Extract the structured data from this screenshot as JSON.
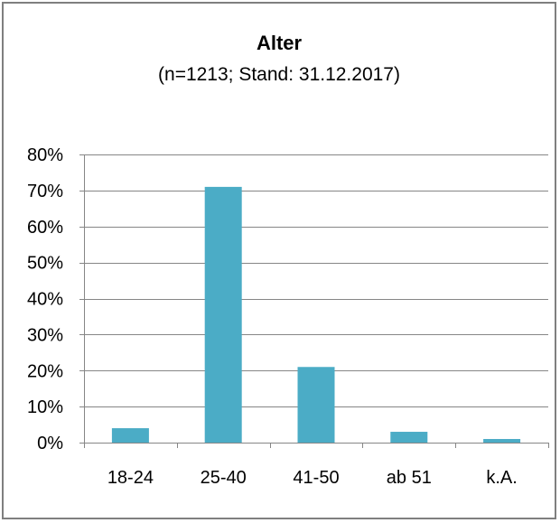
{
  "chart_data": {
    "type": "bar",
    "title": "Alter",
    "subtitle": "(n=1213; Stand: 31.12.2017)",
    "xlabel": "",
    "ylabel": "",
    "categories": [
      "18-24",
      "25-40",
      "41-50",
      "ab 51",
      "k.A."
    ],
    "values": [
      4,
      71,
      21,
      3,
      1
    ],
    "value_unit": "%",
    "ylim": [
      0,
      80
    ],
    "yticks": [
      0,
      10,
      20,
      30,
      40,
      50,
      60,
      70,
      80
    ],
    "ytick_labels": [
      "0%",
      "10%",
      "20%",
      "30%",
      "40%",
      "50%",
      "60%",
      "70%",
      "80%"
    ],
    "grid": true,
    "legend": "none",
    "bar_color": "#4bacc6",
    "grid_color": "#868686",
    "frame_color": "#7f7f7f"
  }
}
